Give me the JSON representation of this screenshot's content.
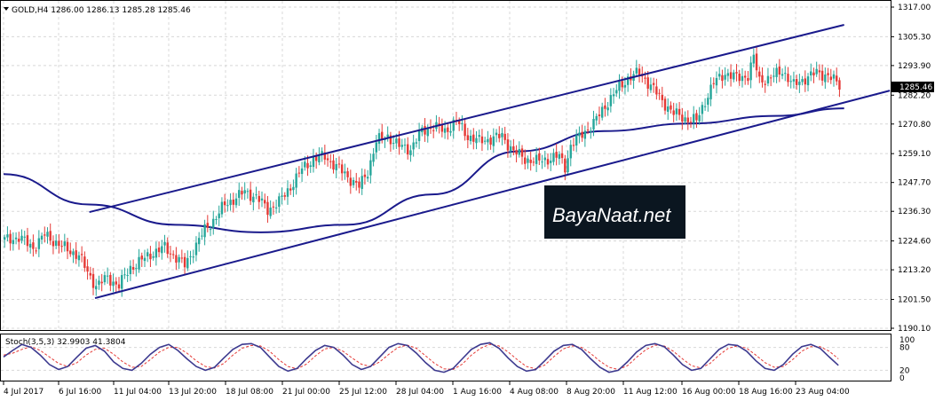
{
  "header": {
    "title": "GOLD,H4  1286.00 1286.13 1285.28 1285.46",
    "indicator_title": "Stoch(3,5,3) 32.9903 41.3804"
  },
  "watermark": {
    "text": "BayaNaat.net"
  },
  "colors": {
    "bull": "#26a69a",
    "bear": "#e53935",
    "trendline": "#1a1a8c",
    "ma": "#1a1a8c",
    "stoch_main": "#3d3a8f",
    "stoch_signal": "#e53935",
    "grid": "#d8d8d8",
    "price_tag_bg": "#000000"
  },
  "chart_data": [
    {
      "type": "candlestick",
      "symbol": "GOLD",
      "timeframe": "H4",
      "current_price": "1285.46",
      "y_ticks": [
        "1317.00",
        "1305.30",
        "1293.90",
        "1282.20",
        "1270.80",
        "1259.10",
        "1247.70",
        "1236.30",
        "1224.60",
        "1213.20",
        "1201.50",
        "1190.10"
      ],
      "y_tick_values": [
        1317.0,
        1305.3,
        1293.9,
        1282.2,
        1270.8,
        1259.1,
        1247.7,
        1236.3,
        1224.6,
        1213.2,
        1201.5,
        1190.1
      ],
      "ylim": [
        1190.1,
        1317.0
      ],
      "x_ticks": [
        "4 Jul 2017",
        "6 Jul 16:00",
        "11 Jul 04:00",
        "13 Jul 20:00",
        "18 Jul 08:00",
        "21 Jul 00:00",
        "25 Jul 12:00",
        "28 Jul 04:00",
        "1 Aug 16:00",
        "4 Aug 08:00",
        "8 Aug 20:00",
        "11 Aug 12:00",
        "16 Aug 00:00",
        "18 Aug 16:00",
        "23 Aug 04:00"
      ],
      "close_path": [
        [
          0,
          1225
        ],
        [
          5,
          1226
        ],
        [
          10,
          1222
        ],
        [
          14,
          1227
        ],
        [
          18,
          1224
        ],
        [
          22,
          1221
        ],
        [
          26,
          1219
        ],
        [
          29,
          1212
        ],
        [
          32,
          1207
        ],
        [
          36,
          1210
        ],
        [
          40,
          1207
        ],
        [
          44,
          1214
        ],
        [
          48,
          1217
        ],
        [
          52,
          1220
        ],
        [
          56,
          1222
        ],
        [
          60,
          1218
        ],
        [
          63,
          1215
        ],
        [
          66,
          1221
        ],
        [
          70,
          1229
        ],
        [
          74,
          1234
        ],
        [
          77,
          1239
        ],
        [
          80,
          1241
        ],
        [
          84,
          1244
        ],
        [
          88,
          1242
        ],
        [
          92,
          1237
        ],
        [
          96,
          1240
        ],
        [
          100,
          1246
        ],
        [
          104,
          1253
        ],
        [
          108,
          1257
        ],
        [
          112,
          1258
        ],
        [
          116,
          1254
        ],
        [
          120,
          1250
        ],
        [
          124,
          1246
        ],
        [
          127,
          1252
        ],
        [
          130,
          1264
        ],
        [
          134,
          1266
        ],
        [
          138,
          1262
        ],
        [
          142,
          1261
        ],
        [
          146,
          1268
        ],
        [
          150,
          1270
        ],
        [
          154,
          1268
        ],
        [
          158,
          1272
        ],
        [
          162,
          1266
        ],
        [
          166,
          1264
        ],
        [
          170,
          1265
        ],
        [
          174,
          1266
        ],
        [
          178,
          1260
        ],
        [
          182,
          1257
        ],
        [
          186,
          1256
        ],
        [
          190,
          1257
        ],
        [
          194,
          1258
        ],
        [
          196,
          1254
        ],
        [
          198,
          1262
        ],
        [
          202,
          1267
        ],
        [
          206,
          1271
        ],
        [
          210,
          1278
        ],
        [
          214,
          1284
        ],
        [
          218,
          1289
        ],
        [
          222,
          1291
        ],
        [
          226,
          1286
        ],
        [
          230,
          1280
        ],
        [
          234,
          1275
        ],
        [
          238,
          1273
        ],
        [
          242,
          1272
        ],
        [
          245,
          1280
        ],
        [
          248,
          1287
        ],
        [
          252,
          1291
        ],
        [
          256,
          1289
        ],
        [
          260,
          1290
        ],
        [
          262,
          1297
        ],
        [
          264,
          1288
        ],
        [
          268,
          1289
        ],
        [
          272,
          1292
        ],
        [
          276,
          1286
        ],
        [
          280,
          1289
        ],
        [
          284,
          1291
        ],
        [
          288,
          1290
        ],
        [
          292,
          1286
        ]
      ],
      "channel_upper": [
        [
          30,
          1236
        ],
        [
          294,
          1310
        ]
      ],
      "channel_lower": [
        [
          32,
          1202
        ],
        [
          310,
          1284
        ]
      ],
      "moving_average": [
        [
          0,
          1251
        ],
        [
          30,
          1239
        ],
        [
          60,
          1231
        ],
        [
          90,
          1228
        ],
        [
          120,
          1231
        ],
        [
          150,
          1243
        ],
        [
          180,
          1260
        ],
        [
          210,
          1268
        ],
        [
          240,
          1271
        ],
        [
          270,
          1274
        ],
        [
          294,
          1277
        ]
      ]
    },
    {
      "type": "line",
      "name": "Stoch(3,5,3)",
      "main_value": "32.9903",
      "signal_value": "41.3804",
      "y_ticks": [
        "100",
        "80",
        "20",
        "0"
      ],
      "y_tick_values": [
        100,
        80,
        20,
        0
      ],
      "ylim": [
        0,
        100
      ],
      "main": [
        55,
        72,
        88,
        80,
        60,
        35,
        22,
        30,
        55,
        78,
        85,
        70,
        42,
        25,
        20,
        38,
        62,
        80,
        88,
        72,
        50,
        30,
        20,
        28,
        52,
        75,
        88,
        90,
        80,
        55,
        30,
        18,
        25,
        50,
        72,
        85,
        80,
        60,
        35,
        22,
        30,
        55,
        80,
        90,
        85,
        65,
        40,
        20,
        15,
        25,
        50,
        75,
        88,
        92,
        78,
        52,
        30,
        18,
        22,
        45,
        70,
        85,
        88,
        75,
        50,
        28,
        15,
        20,
        42,
        68,
        85,
        90,
        82,
        60,
        35,
        20,
        25,
        50,
        75,
        88,
        85,
        70,
        45,
        25,
        20,
        35,
        62,
        82,
        88,
        78,
        55,
        33
      ],
      "signal": [
        60,
        65,
        75,
        82,
        72,
        55,
        38,
        30,
        40,
        60,
        75,
        78,
        62,
        42,
        28,
        30,
        48,
        68,
        80,
        80,
        65,
        45,
        30,
        26,
        38,
        60,
        78,
        85,
        84,
        70,
        48,
        30,
        24,
        36,
        58,
        76,
        80,
        70,
        52,
        36,
        30,
        42,
        62,
        80,
        86,
        78,
        58,
        38,
        24,
        22,
        36,
        60,
        78,
        88,
        84,
        68,
        48,
        30,
        24,
        34,
        56,
        76,
        84,
        80,
        64,
        44,
        28,
        22,
        32,
        54,
        74,
        86,
        84,
        70,
        50,
        32,
        26,
        38,
        60,
        78,
        84,
        78,
        60,
        40,
        28,
        30,
        48,
        70,
        82,
        82,
        70,
        50
      ]
    }
  ]
}
